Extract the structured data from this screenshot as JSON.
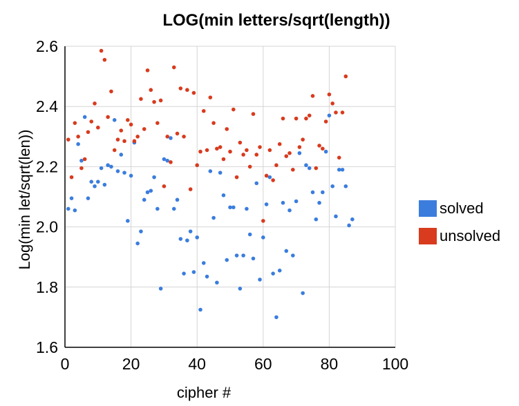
{
  "chart_data": {
    "type": "scatter",
    "title": "LOG(min letters/sqrt(length))",
    "xlabel": "cipher #",
    "ylabel": "Log(min let/sqrt(len))",
    "xlim": [
      0,
      100
    ],
    "ylim": [
      1.6,
      2.6
    ],
    "xticks": [
      "0",
      "20",
      "40",
      "60",
      "80",
      "100"
    ],
    "yticks": [
      "1.6",
      "1.8",
      "2.0",
      "2.2",
      "2.4",
      "2.6"
    ],
    "grid": true,
    "legend_position": "right",
    "series": [
      {
        "name": "solved",
        "color": "#3b7ddd",
        "points": [
          [
            1,
            2.06
          ],
          [
            2,
            2.095
          ],
          [
            3,
            2.055
          ],
          [
            4,
            2.275
          ],
          [
            5,
            2.22
          ],
          [
            6,
            2.365
          ],
          [
            7,
            2.095
          ],
          [
            8,
            2.15
          ],
          [
            9,
            2.135
          ],
          [
            10,
            2.15
          ],
          [
            11,
            2.195
          ],
          [
            12,
            2.14
          ],
          [
            13,
            2.205
          ],
          [
            14,
            2.2
          ],
          [
            15,
            2.355
          ],
          [
            16,
            2.185
          ],
          [
            17,
            2.24
          ],
          [
            18,
            2.18
          ],
          [
            19,
            2.02
          ],
          [
            20,
            2.17
          ],
          [
            21,
            2.28
          ],
          [
            22,
            1.945
          ],
          [
            23,
            1.985
          ],
          [
            24,
            2.09
          ],
          [
            25,
            2.115
          ],
          [
            26,
            2.12
          ],
          [
            27,
            2.165
          ],
          [
            28,
            2.06
          ],
          [
            29,
            1.795
          ],
          [
            30,
            2.225
          ],
          [
            31,
            2.22
          ],
          [
            32,
            2.295
          ],
          [
            33,
            2.06
          ],
          [
            34,
            2.09
          ],
          [
            35,
            1.96
          ],
          [
            36,
            1.845
          ],
          [
            37,
            1.955
          ],
          [
            38,
            1.985
          ],
          [
            39,
            1.85
          ],
          [
            40,
            1.965
          ],
          [
            41,
            1.725
          ],
          [
            42,
            1.88
          ],
          [
            43,
            1.835
          ],
          [
            44,
            2.185
          ],
          [
            45,
            2.03
          ],
          [
            46,
            1.815
          ],
          [
            47,
            2.18
          ],
          [
            48,
            2.105
          ],
          [
            49,
            1.89
          ],
          [
            50,
            2.065
          ],
          [
            51,
            2.065
          ],
          [
            52,
            1.905
          ],
          [
            53,
            1.795
          ],
          [
            54,
            1.905
          ],
          [
            55,
            2.06
          ],
          [
            56,
            1.975
          ],
          [
            57,
            1.895
          ],
          [
            58,
            2.145
          ],
          [
            59,
            1.825
          ],
          [
            60,
            1.965
          ],
          [
            61,
            2.075
          ],
          [
            62,
            2.165
          ],
          [
            63,
            1.845
          ],
          [
            64,
            1.7
          ],
          [
            65,
            1.855
          ],
          [
            66,
            2.08
          ],
          [
            67,
            1.92
          ],
          [
            68,
            2.055
          ],
          [
            69,
            1.905
          ],
          [
            70,
            2.085
          ],
          [
            71,
            2.245
          ],
          [
            72,
            1.78
          ],
          [
            73,
            2.205
          ],
          [
            74,
            2.195
          ],
          [
            75,
            2.115
          ],
          [
            76,
            2.025
          ],
          [
            77,
            2.08
          ],
          [
            78,
            2.115
          ],
          [
            79,
            2.25
          ],
          [
            80,
            2.37
          ],
          [
            81,
            2.135
          ],
          [
            82,
            2.035
          ],
          [
            83,
            2.19
          ],
          [
            84,
            2.19
          ],
          [
            85,
            2.135
          ],
          [
            86,
            2.005
          ],
          [
            87,
            2.025
          ]
        ]
      },
      {
        "name": "unsolved",
        "color": "#d83b1e",
        "points": [
          [
            1,
            2.29
          ],
          [
            2,
            2.165
          ],
          [
            3,
            2.345
          ],
          [
            4,
            2.3
          ],
          [
            5,
            2.195
          ],
          [
            6,
            2.225
          ],
          [
            7,
            2.315
          ],
          [
            8,
            2.35
          ],
          [
            9,
            2.41
          ],
          [
            10,
            2.33
          ],
          [
            11,
            2.585
          ],
          [
            12,
            2.555
          ],
          [
            13,
            2.365
          ],
          [
            14,
            2.45
          ],
          [
            15,
            2.255
          ],
          [
            16,
            2.29
          ],
          [
            17,
            2.32
          ],
          [
            18,
            2.285
          ],
          [
            19,
            2.355
          ],
          [
            20,
            2.34
          ],
          [
            21,
            2.285
          ],
          [
            22,
            2.3
          ],
          [
            23,
            2.425
          ],
          [
            24,
            2.325
          ],
          [
            25,
            2.52
          ],
          [
            26,
            2.455
          ],
          [
            27,
            2.415
          ],
          [
            28,
            2.345
          ],
          [
            29,
            2.42
          ],
          [
            30,
            2.135
          ],
          [
            31,
            2.3
          ],
          [
            32,
            2.215
          ],
          [
            33,
            2.53
          ],
          [
            34,
            2.31
          ],
          [
            35,
            2.46
          ],
          [
            36,
            2.3
          ],
          [
            37,
            2.455
          ],
          [
            38,
            2.125
          ],
          [
            39,
            2.445
          ],
          [
            40,
            2.205
          ],
          [
            41,
            2.25
          ],
          [
            42,
            2.385
          ],
          [
            43,
            2.255
          ],
          [
            44,
            2.43
          ],
          [
            45,
            2.345
          ],
          [
            46,
            2.26
          ],
          [
            47,
            2.265
          ],
          [
            48,
            2.225
          ],
          [
            49,
            2.325
          ],
          [
            50,
            2.25
          ],
          [
            51,
            2.39
          ],
          [
            52,
            2.165
          ],
          [
            53,
            2.28
          ],
          [
            54,
            2.24
          ],
          [
            55,
            2.255
          ],
          [
            56,
            2.2
          ],
          [
            57,
            2.375
          ],
          [
            58,
            2.24
          ],
          [
            59,
            2.265
          ],
          [
            60,
            2.02
          ],
          [
            61,
            2.17
          ],
          [
            62,
            2.255
          ],
          [
            63,
            2.155
          ],
          [
            64,
            2.205
          ],
          [
            65,
            2.275
          ],
          [
            66,
            2.36
          ],
          [
            67,
            2.235
          ],
          [
            68,
            2.245
          ],
          [
            69,
            2.19
          ],
          [
            70,
            2.36
          ],
          [
            71,
            2.265
          ],
          [
            72,
            2.29
          ],
          [
            73,
            2.36
          ],
          [
            74,
            2.37
          ],
          [
            75,
            2.435
          ],
          [
            76,
            2.195
          ],
          [
            77,
            2.27
          ],
          [
            78,
            2.26
          ],
          [
            79,
            2.35
          ],
          [
            80,
            2.44
          ],
          [
            81,
            2.41
          ],
          [
            82,
            2.38
          ],
          [
            83,
            2.23
          ],
          [
            84,
            2.38
          ],
          [
            85,
            2.5
          ]
        ]
      }
    ]
  }
}
